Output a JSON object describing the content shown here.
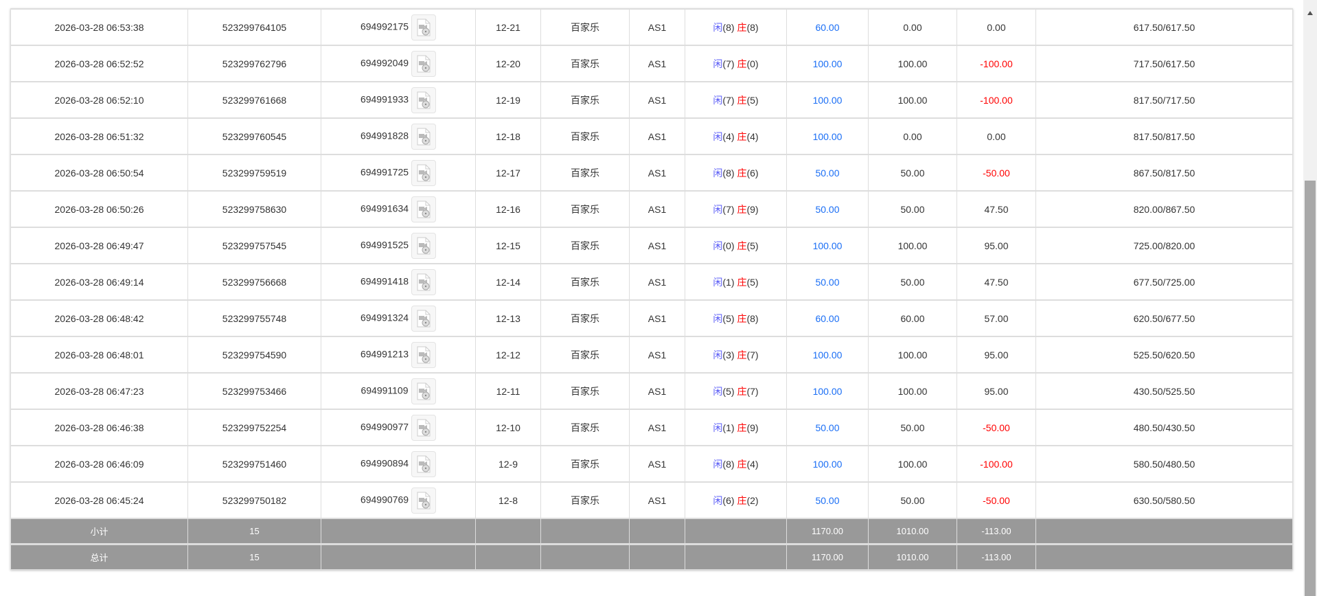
{
  "colors": {
    "bet_blue": "#1a6ef5",
    "loss_red": "#ff0000",
    "player": "#5a5cf7",
    "banker": "#ff0000",
    "summary_bg": "#999999"
  },
  "labels": {
    "player": "闲",
    "banker": "庄"
  },
  "rows": [
    {
      "time": "2026-03-28 06:53:38",
      "order": "523299764105",
      "round": "694992175",
      "shoe": "12-21",
      "game": "百家乐",
      "table": "AS1",
      "p": "8",
      "b": "8",
      "bet": "60.00",
      "valid": "0.00",
      "win": "0.00",
      "win_neg": false,
      "balance": "617.50/617.50"
    },
    {
      "time": "2026-03-28 06:52:52",
      "order": "523299762796",
      "round": "694992049",
      "shoe": "12-20",
      "game": "百家乐",
      "table": "AS1",
      "p": "7",
      "b": "0",
      "bet": "100.00",
      "valid": "100.00",
      "win": "-100.00",
      "win_neg": true,
      "balance": "717.50/617.50"
    },
    {
      "time": "2026-03-28 06:52:10",
      "order": "523299761668",
      "round": "694991933",
      "shoe": "12-19",
      "game": "百家乐",
      "table": "AS1",
      "p": "7",
      "b": "5",
      "bet": "100.00",
      "valid": "100.00",
      "win": "-100.00",
      "win_neg": true,
      "balance": "817.50/717.50"
    },
    {
      "time": "2026-03-28 06:51:32",
      "order": "523299760545",
      "round": "694991828",
      "shoe": "12-18",
      "game": "百家乐",
      "table": "AS1",
      "p": "4",
      "b": "4",
      "bet": "100.00",
      "valid": "0.00",
      "win": "0.00",
      "win_neg": false,
      "balance": "817.50/817.50"
    },
    {
      "time": "2026-03-28 06:50:54",
      "order": "523299759519",
      "round": "694991725",
      "shoe": "12-17",
      "game": "百家乐",
      "table": "AS1",
      "p": "8",
      "b": "6",
      "bet": "50.00",
      "valid": "50.00",
      "win": "-50.00",
      "win_neg": true,
      "balance": "867.50/817.50"
    },
    {
      "time": "2026-03-28 06:50:26",
      "order": "523299758630",
      "round": "694991634",
      "shoe": "12-16",
      "game": "百家乐",
      "table": "AS1",
      "p": "7",
      "b": "9",
      "bet": "50.00",
      "valid": "50.00",
      "win": "47.50",
      "win_neg": false,
      "balance": "820.00/867.50"
    },
    {
      "time": "2026-03-28 06:49:47",
      "order": "523299757545",
      "round": "694991525",
      "shoe": "12-15",
      "game": "百家乐",
      "table": "AS1",
      "p": "0",
      "b": "5",
      "bet": "100.00",
      "valid": "100.00",
      "win": "95.00",
      "win_neg": false,
      "balance": "725.00/820.00"
    },
    {
      "time": "2026-03-28 06:49:14",
      "order": "523299756668",
      "round": "694991418",
      "shoe": "12-14",
      "game": "百家乐",
      "table": "AS1",
      "p": "1",
      "b": "5",
      "bet": "50.00",
      "valid": "50.00",
      "win": "47.50",
      "win_neg": false,
      "balance": "677.50/725.00"
    },
    {
      "time": "2026-03-28 06:48:42",
      "order": "523299755748",
      "round": "694991324",
      "shoe": "12-13",
      "game": "百家乐",
      "table": "AS1",
      "p": "5",
      "b": "8",
      "bet": "60.00",
      "valid": "60.00",
      "win": "57.00",
      "win_neg": false,
      "balance": "620.50/677.50"
    },
    {
      "time": "2026-03-28 06:48:01",
      "order": "523299754590",
      "round": "694991213",
      "shoe": "12-12",
      "game": "百家乐",
      "table": "AS1",
      "p": "3",
      "b": "7",
      "bet": "100.00",
      "valid": "100.00",
      "win": "95.00",
      "win_neg": false,
      "balance": "525.50/620.50"
    },
    {
      "time": "2026-03-28 06:47:23",
      "order": "523299753466",
      "round": "694991109",
      "shoe": "12-11",
      "game": "百家乐",
      "table": "AS1",
      "p": "5",
      "b": "7",
      "bet": "100.00",
      "valid": "100.00",
      "win": "95.00",
      "win_neg": false,
      "balance": "430.50/525.50"
    },
    {
      "time": "2026-03-28 06:46:38",
      "order": "523299752254",
      "round": "694990977",
      "shoe": "12-10",
      "game": "百家乐",
      "table": "AS1",
      "p": "1",
      "b": "9",
      "bet": "50.00",
      "valid": "50.00",
      "win": "-50.00",
      "win_neg": true,
      "balance": "480.50/430.50"
    },
    {
      "time": "2026-03-28 06:46:09",
      "order": "523299751460",
      "round": "694990894",
      "shoe": "12-9",
      "game": "百家乐",
      "table": "AS1",
      "p": "8",
      "b": "4",
      "bet": "100.00",
      "valid": "100.00",
      "win": "-100.00",
      "win_neg": true,
      "balance": "580.50/480.50"
    },
    {
      "time": "2026-03-28 06:45:24",
      "order": "523299750182",
      "round": "694990769",
      "shoe": "12-8",
      "game": "百家乐",
      "table": "AS1",
      "p": "6",
      "b": "2",
      "bet": "50.00",
      "valid": "50.00",
      "win": "-50.00",
      "win_neg": true,
      "balance": "630.50/580.50"
    }
  ],
  "summary": [
    {
      "label": "小计",
      "count": "15",
      "bet": "1170.00",
      "valid": "1010.00",
      "win": "-113.00"
    },
    {
      "label": "总计",
      "count": "15",
      "bet": "1170.00",
      "valid": "1010.00",
      "win": "-113.00"
    }
  ]
}
